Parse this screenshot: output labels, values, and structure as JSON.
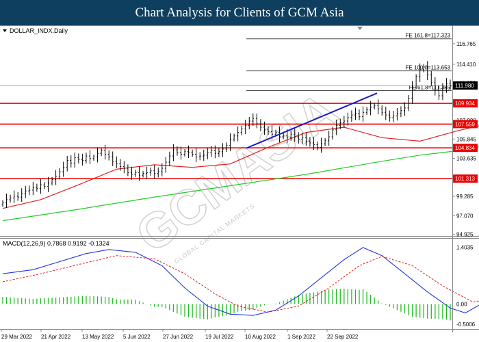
{
  "header": {
    "title": "Chart Analysis for Clients of GCM Asia"
  },
  "watermark": {
    "brand": "GCMASIA",
    "tagline": "GLOBAL CAPITAL MARKETS"
  },
  "colors": {
    "price_bar": "#000000",
    "sma_fast": "#e02020",
    "sma_slow": "#22cc22",
    "trendline": "#1a1acc",
    "support_resistance": "#ee0000",
    "label_bg": "#ee0000",
    "macd_line": "#2233dd",
    "macd_signal": "#e02020",
    "macd_hist": "#22bb22",
    "current_price_bg": "#000000"
  },
  "chart_data": [
    {
      "type": "ohlc",
      "title": "DOLLAR_INDX,Daily",
      "ylim": [
        94.9,
        118.4
      ],
      "y_ticks": [
        "116.765",
        "114.410",
        "112.255",
        "110.100",
        "107.990",
        "105.845",
        "103.635",
        "101.480",
        "99.285",
        "97.070",
        "94.925"
      ],
      "x_ticks": [
        "29 Mar 2022",
        "21 Apr 2022",
        "13 May 2022",
        "5 Jun 2022",
        "27 Jun 2022",
        "19 Jul 2022",
        "10 Aug 2022",
        "1 Sep 2022",
        "22 Sep 2022"
      ],
      "current_price": "111.980",
      "levels": [
        {
          "value": 109.934,
          "label": "109.934"
        },
        {
          "value": 107.559,
          "label": "107.559"
        },
        {
          "value": 104.834,
          "label": "104.834"
        },
        {
          "value": 101.313,
          "label": "101.313"
        }
      ],
      "fibonacci": [
        {
          "value": 117.323,
          "label": "FE 161.8=117.323"
        },
        {
          "value": 113.653,
          "label": "FE 100.0=113.653"
        },
        {
          "value": 111.385,
          "label": "FE 61.8=111.385"
        }
      ],
      "trendline": {
        "start": [
          "10 Aug 2022",
          104.8
        ],
        "end": [
          "28 Sep 2022",
          111.1
        ]
      },
      "closes": [
        98.6,
        98.9,
        99.1,
        99.3,
        99.2,
        99.6,
        99.9,
        100.0,
        100.3,
        100.2,
        100.6,
        100.4,
        100.8,
        101.2,
        101.6,
        102.1,
        102.6,
        103.4,
        103.1,
        103.7,
        103.5,
        103.4,
        103.9,
        103.6,
        103.8,
        104.2,
        104.5,
        104.1,
        103.8,
        103.3,
        103.0,
        102.7,
        102.5,
        102.0,
        101.8,
        102.0,
        101.7,
        101.9,
        102.0,
        102.2,
        101.9,
        102.1,
        102.5,
        103.2,
        103.9,
        104.6,
        104.3,
        104.1,
        104.4,
        104.3,
        104.1,
        103.8,
        103.9,
        104.0,
        104.3,
        104.5,
        104.2,
        104.4,
        104.7,
        105.1,
        105.8,
        106.2,
        106.6,
        107.0,
        107.4,
        107.9,
        108.2,
        107.6,
        107.2,
        106.9,
        106.7,
        106.4,
        106.6,
        106.1,
        106.3,
        106.0,
        106.4,
        106.1,
        105.8,
        106.0,
        105.6,
        105.4,
        105.2,
        104.9,
        105.3,
        105.7,
        106.1,
        106.9,
        107.4,
        107.7,
        107.9,
        108.3,
        108.6,
        108.8,
        108.4,
        108.9,
        109.2,
        109.5,
        109.7,
        109.3,
        108.9,
        108.6,
        108.3,
        108.5,
        108.8,
        109.1,
        109.4,
        110.5,
        111.8,
        113.0,
        113.8,
        114.1,
        113.2,
        112.3,
        111.4,
        110.8,
        111.7,
        112.2,
        111.9
      ],
      "sma_fast_points": [
        [
          0,
          97.9
        ],
        [
          10,
          98.9
        ],
        [
          20,
          100.6
        ],
        [
          30,
          102.4
        ],
        [
          40,
          102.9
        ],
        [
          50,
          102.6
        ],
        [
          60,
          103.0
        ],
        [
          70,
          104.9
        ],
        [
          80,
          106.6
        ],
        [
          90,
          107.2
        ],
        [
          100,
          106.0
        ],
        [
          110,
          105.6
        ],
        [
          120,
          106.8
        ],
        [
          130,
          107.8
        ],
        [
          140,
          108.2
        ],
        [
          150,
          108.5
        ],
        [
          160,
          109.5
        ],
        [
          171,
          111.2
        ]
      ],
      "sma_slow_points": [
        [
          0,
          96.5
        ],
        [
          20,
          97.8
        ],
        [
          40,
          99.2
        ],
        [
          60,
          100.5
        ],
        [
          80,
          101.8
        ],
        [
          100,
          103.3
        ],
        [
          110,
          104.0
        ],
        [
          120,
          104.5
        ],
        [
          130,
          105.3
        ],
        [
          140,
          106.3
        ],
        [
          150,
          107.1
        ],
        [
          160,
          108.4
        ],
        [
          171,
          109.0
        ]
      ]
    },
    {
      "type": "line",
      "title": "MACD(12,26,9) 0.7868 0.9192 -0.1324",
      "ylim": [
        -0.55,
        1.55
      ],
      "y_ticks": [
        "1.4035",
        "0.00",
        "-0.5006"
      ],
      "series": [
        {
          "name": "MACD",
          "points": [
            [
              0,
              0.75
            ],
            [
              8,
              0.85
            ],
            [
              15,
              1.05
            ],
            [
              22,
              1.25
            ],
            [
              28,
              1.35
            ],
            [
              35,
              1.28
            ],
            [
              42,
              0.95
            ],
            [
              48,
              0.4
            ],
            [
              54,
              -0.05
            ],
            [
              60,
              -0.25
            ],
            [
              66,
              -0.28
            ],
            [
              72,
              -0.15
            ],
            [
              78,
              0.2
            ],
            [
              84,
              0.65
            ],
            [
              90,
              1.1
            ],
            [
              95,
              1.4
            ],
            [
              100,
              1.2
            ],
            [
              106,
              0.75
            ],
            [
              112,
              0.3
            ],
            [
              118,
              -0.1
            ],
            [
              122,
              -0.22
            ],
            [
              127,
              0.05
            ],
            [
              132,
              0.45
            ],
            [
              138,
              0.75
            ],
            [
              144,
              0.95
            ],
            [
              148,
              0.85
            ],
            [
              152,
              0.55
            ],
            [
              156,
              0.4
            ],
            [
              160,
              0.6
            ],
            [
              164,
              1.05
            ],
            [
              167,
              1.4
            ],
            [
              170,
              0.85
            ],
            [
              171,
              0.78
            ]
          ]
        },
        {
          "name": "Signal",
          "points": [
            [
              0,
              0.55
            ],
            [
              10,
              0.75
            ],
            [
              20,
              0.98
            ],
            [
              30,
              1.2
            ],
            [
              40,
              1.12
            ],
            [
              48,
              0.75
            ],
            [
              56,
              0.25
            ],
            [
              62,
              -0.05
            ],
            [
              70,
              -0.2
            ],
            [
              78,
              -0.05
            ],
            [
              86,
              0.4
            ],
            [
              94,
              0.95
            ],
            [
              100,
              1.18
            ],
            [
              108,
              0.95
            ],
            [
              116,
              0.45
            ],
            [
              124,
              0.05
            ],
            [
              130,
              0.15
            ],
            [
              138,
              0.55
            ],
            [
              146,
              0.85
            ],
            [
              152,
              0.7
            ],
            [
              158,
              0.55
            ],
            [
              164,
              0.8
            ],
            [
              168,
              1.1
            ],
            [
              171,
              0.92
            ]
          ]
        }
      ]
    }
  ]
}
